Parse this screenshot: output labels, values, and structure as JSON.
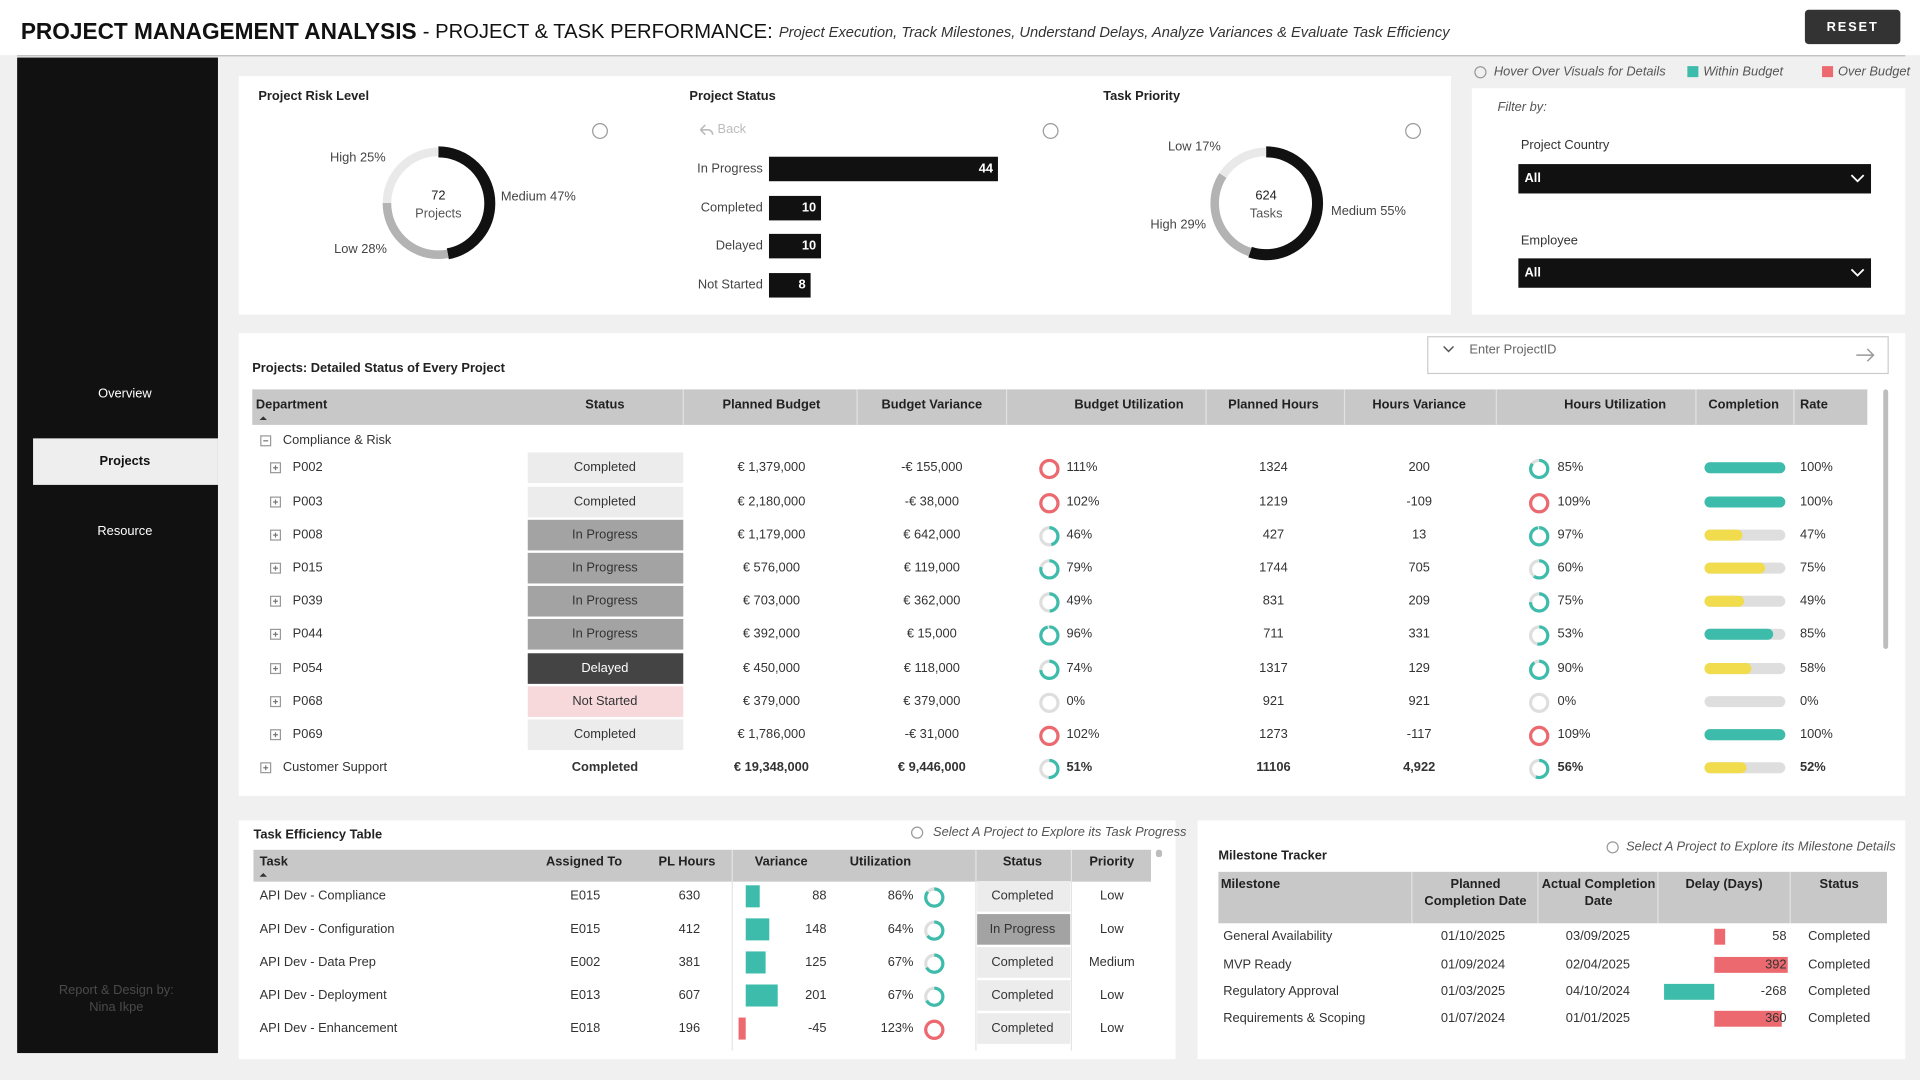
{
  "header": {
    "title": "PROJECT MANAGEMENT ANALYSIS",
    "subtitle": "- PROJECT & TASK PERFORMANCE:",
    "description": "Project Execution, Track Milestones, Understand Delays, Analyze Variances & Evaluate Task Efficiency",
    "reset": "RESET"
  },
  "sidebar": {
    "nav": [
      "Overview",
      "Projects",
      "Resource"
    ],
    "active": 1,
    "credit": [
      "Report & Design by:",
      "Nina Ikpe"
    ]
  },
  "legend": {
    "hint": "Hover Over Visuals for Details",
    "items": [
      {
        "label": "Within Budget",
        "color": "#3dbcab"
      },
      {
        "label": "Over Budget",
        "color": "#ec6a6f"
      }
    ]
  },
  "filters": {
    "label": "Filter by:",
    "fields": [
      {
        "label": "Project Country",
        "value": "All"
      },
      {
        "label": "Employee",
        "value": "All"
      }
    ]
  },
  "risk_chart": {
    "type": "donut",
    "title": "Project Risk Level",
    "total": 72,
    "total_label": "Projects",
    "slices": [
      {
        "label": "Medium 47%",
        "value": 47,
        "color": "#111111"
      },
      {
        "label": "Low 28%",
        "value": 28,
        "color": "#b3b3b3"
      },
      {
        "label": "High 25%",
        "value": 25,
        "color": "#e9e9e9"
      }
    ]
  },
  "status_chart": {
    "type": "bar",
    "title": "Project Status",
    "back": "Back",
    "categories": [
      "In Progress",
      "Completed",
      "Delayed",
      "Not Started"
    ],
    "values": [
      44,
      10,
      10,
      8
    ],
    "color": "#111111"
  },
  "priority_chart": {
    "type": "donut",
    "title": "Task Priority",
    "total": 624,
    "total_label": "Tasks",
    "slices": [
      {
        "label": "Medium 55%",
        "value": 55,
        "color": "#111111"
      },
      {
        "label": "High 29%",
        "value": 29,
        "color": "#b3b3b3"
      },
      {
        "label": "Low 17%",
        "value": 17,
        "color": "#e9e9e9"
      }
    ]
  },
  "projects": {
    "title": "Projects: Detailed Status of Every Project",
    "search": "Enter ProjectID",
    "columns": [
      "Department",
      "Status",
      "Planned Budget",
      "Budget Variance",
      "Budget Utilization",
      "Planned Hours",
      "Hours Variance",
      "Hours Utilization",
      "Completion",
      "Rate"
    ],
    "status_styles": {
      "Completed": {
        "bg": "#ececec",
        "fg": "#333333"
      },
      "In Progress": {
        "bg": "#a3a3a3",
        "fg": "#333333"
      },
      "Delayed": {
        "bg": "#444444",
        "fg": "#ffffff"
      },
      "Not Started": {
        "bg": "#f7d9dc",
        "fg": "#333333"
      }
    },
    "completion_colors": {
      "high": "#3dbcab",
      "low": "#f0dc4c"
    },
    "group": "Compliance & Risk",
    "rows": [
      {
        "id": "P002",
        "status": "Completed",
        "planned_budget": "€ 1,379,000",
        "budget_variance": "-€ 155,000",
        "budget_util": 111,
        "budget_util_label": "111%",
        "planned_hours": 1324,
        "hours_variance": 200,
        "hours_util": 85,
        "hours_util_label": "85%",
        "completion": 100,
        "completion_label": "100%"
      },
      {
        "id": "P003",
        "status": "Completed",
        "planned_budget": "€ 2,180,000",
        "budget_variance": "-€ 38,000",
        "budget_util": 102,
        "budget_util_label": "102%",
        "planned_hours": 1219,
        "hours_variance": -109,
        "hours_util": 109,
        "hours_util_label": "109%",
        "completion": 100,
        "completion_label": "100%"
      },
      {
        "id": "P008",
        "status": "In Progress",
        "planned_budget": "€ 1,179,000",
        "budget_variance": "€ 642,000",
        "budget_util": 46,
        "budget_util_label": "46%",
        "planned_hours": 427,
        "hours_variance": 13,
        "hours_util": 97,
        "hours_util_label": "97%",
        "completion": 47,
        "completion_label": "47%"
      },
      {
        "id": "P015",
        "status": "In Progress",
        "planned_budget": "€ 576,000",
        "budget_variance": "€ 119,000",
        "budget_util": 79,
        "budget_util_label": "79%",
        "planned_hours": 1744,
        "hours_variance": 705,
        "hours_util": 60,
        "hours_util_label": "60%",
        "completion": 75,
        "completion_label": "75%"
      },
      {
        "id": "P039",
        "status": "In Progress",
        "planned_budget": "€ 703,000",
        "budget_variance": "€ 362,000",
        "budget_util": 49,
        "budget_util_label": "49%",
        "planned_hours": 831,
        "hours_variance": 209,
        "hours_util": 75,
        "hours_util_label": "75%",
        "completion": 49,
        "completion_label": "49%"
      },
      {
        "id": "P044",
        "status": "In Progress",
        "planned_budget": "€ 392,000",
        "budget_variance": "€ 15,000",
        "budget_util": 96,
        "budget_util_label": "96%",
        "planned_hours": 711,
        "hours_variance": 331,
        "hours_util": 53,
        "hours_util_label": "53%",
        "completion": 85,
        "completion_label": "85%"
      },
      {
        "id": "P054",
        "status": "Delayed",
        "planned_budget": "€ 450,000",
        "budget_variance": "€ 118,000",
        "budget_util": 74,
        "budget_util_label": "74%",
        "planned_hours": 1317,
        "hours_variance": 129,
        "hours_util": 90,
        "hours_util_label": "90%",
        "completion": 58,
        "completion_label": "58%"
      },
      {
        "id": "P068",
        "status": "Not Started",
        "planned_budget": "€ 379,000",
        "budget_variance": "€ 379,000",
        "budget_util": 0,
        "budget_util_label": "0%",
        "planned_hours": 921,
        "hours_variance": 921,
        "hours_util": 0,
        "hours_util_label": "0%",
        "completion": 0,
        "completion_label": "0%"
      },
      {
        "id": "P069",
        "status": "Completed",
        "planned_budget": "€ 1,786,000",
        "budget_variance": "-€ 31,000",
        "budget_util": 102,
        "budget_util_label": "102%",
        "planned_hours": 1273,
        "hours_variance": -117,
        "hours_util": 109,
        "hours_util_label": "109%",
        "completion": 100,
        "completion_label": "100%"
      }
    ],
    "total": {
      "name": "Customer Support",
      "status": "Completed",
      "planned_budget": "€ 19,348,000",
      "budget_variance": "€ 9,446,000",
      "budget_util": 51,
      "budget_util_label": "51%",
      "planned_hours": 11106,
      "hours_variance": "4,922",
      "hours_util": 56,
      "hours_util_label": "56%",
      "completion": 52,
      "completion_label": "52%"
    }
  },
  "tasks": {
    "title": "Task Efficiency Table",
    "hint": "Select A Project to Explore its Task Progress",
    "columns": [
      "Task",
      "Assigned To",
      "PL Hours",
      "Variance",
      "Utilization",
      "Status",
      "Priority"
    ],
    "rows": [
      {
        "task": "API Dev - Compliance",
        "assigned_to": "E015",
        "pl_hours": 630,
        "variance": 88,
        "utilization": 86,
        "utilization_label": "86%",
        "status": "Completed",
        "priority": "Low"
      },
      {
        "task": "API Dev - Configuration",
        "assigned_to": "E015",
        "pl_hours": 412,
        "variance": 148,
        "utilization": 64,
        "utilization_label": "64%",
        "status": "In Progress",
        "priority": "Low"
      },
      {
        "task": "API Dev - Data Prep",
        "assigned_to": "E002",
        "pl_hours": 381,
        "variance": 125,
        "utilization": 67,
        "utilization_label": "67%",
        "status": "Completed",
        "priority": "Medium"
      },
      {
        "task": "API Dev - Deployment",
        "assigned_to": "E013",
        "pl_hours": 607,
        "variance": 201,
        "utilization": 67,
        "utilization_label": "67%",
        "status": "Completed",
        "priority": "Low"
      },
      {
        "task": "API Dev - Enhancement",
        "assigned_to": "E018",
        "pl_hours": 196,
        "variance": -45,
        "utilization": 123,
        "utilization_label": "123%",
        "status": "Completed",
        "priority": "Low"
      }
    ]
  },
  "milestones": {
    "title": "Milestone Tracker",
    "hint": "Select A Project to Explore its Milestone Details",
    "columns": [
      "Milestone",
      "Planned Completion Date",
      "Actual Completion Date",
      "Delay (Days)",
      "Status"
    ],
    "rows": [
      {
        "milestone": "General Availability",
        "planned": "01/10/2025",
        "actual": "03/09/2025",
        "delay": 58,
        "status": "Completed"
      },
      {
        "milestone": "MVP Ready",
        "planned": "01/09/2024",
        "actual": "02/04/2025",
        "delay": 392,
        "status": "Completed"
      },
      {
        "milestone": "Regulatory Approval",
        "planned": "01/03/2025",
        "actual": "04/10/2024",
        "delay": -268,
        "status": "Completed"
      },
      {
        "milestone": "Requirements & Scoping",
        "planned": "01/07/2024",
        "actual": "01/01/2025",
        "delay": 360,
        "status": "Completed"
      }
    ]
  }
}
